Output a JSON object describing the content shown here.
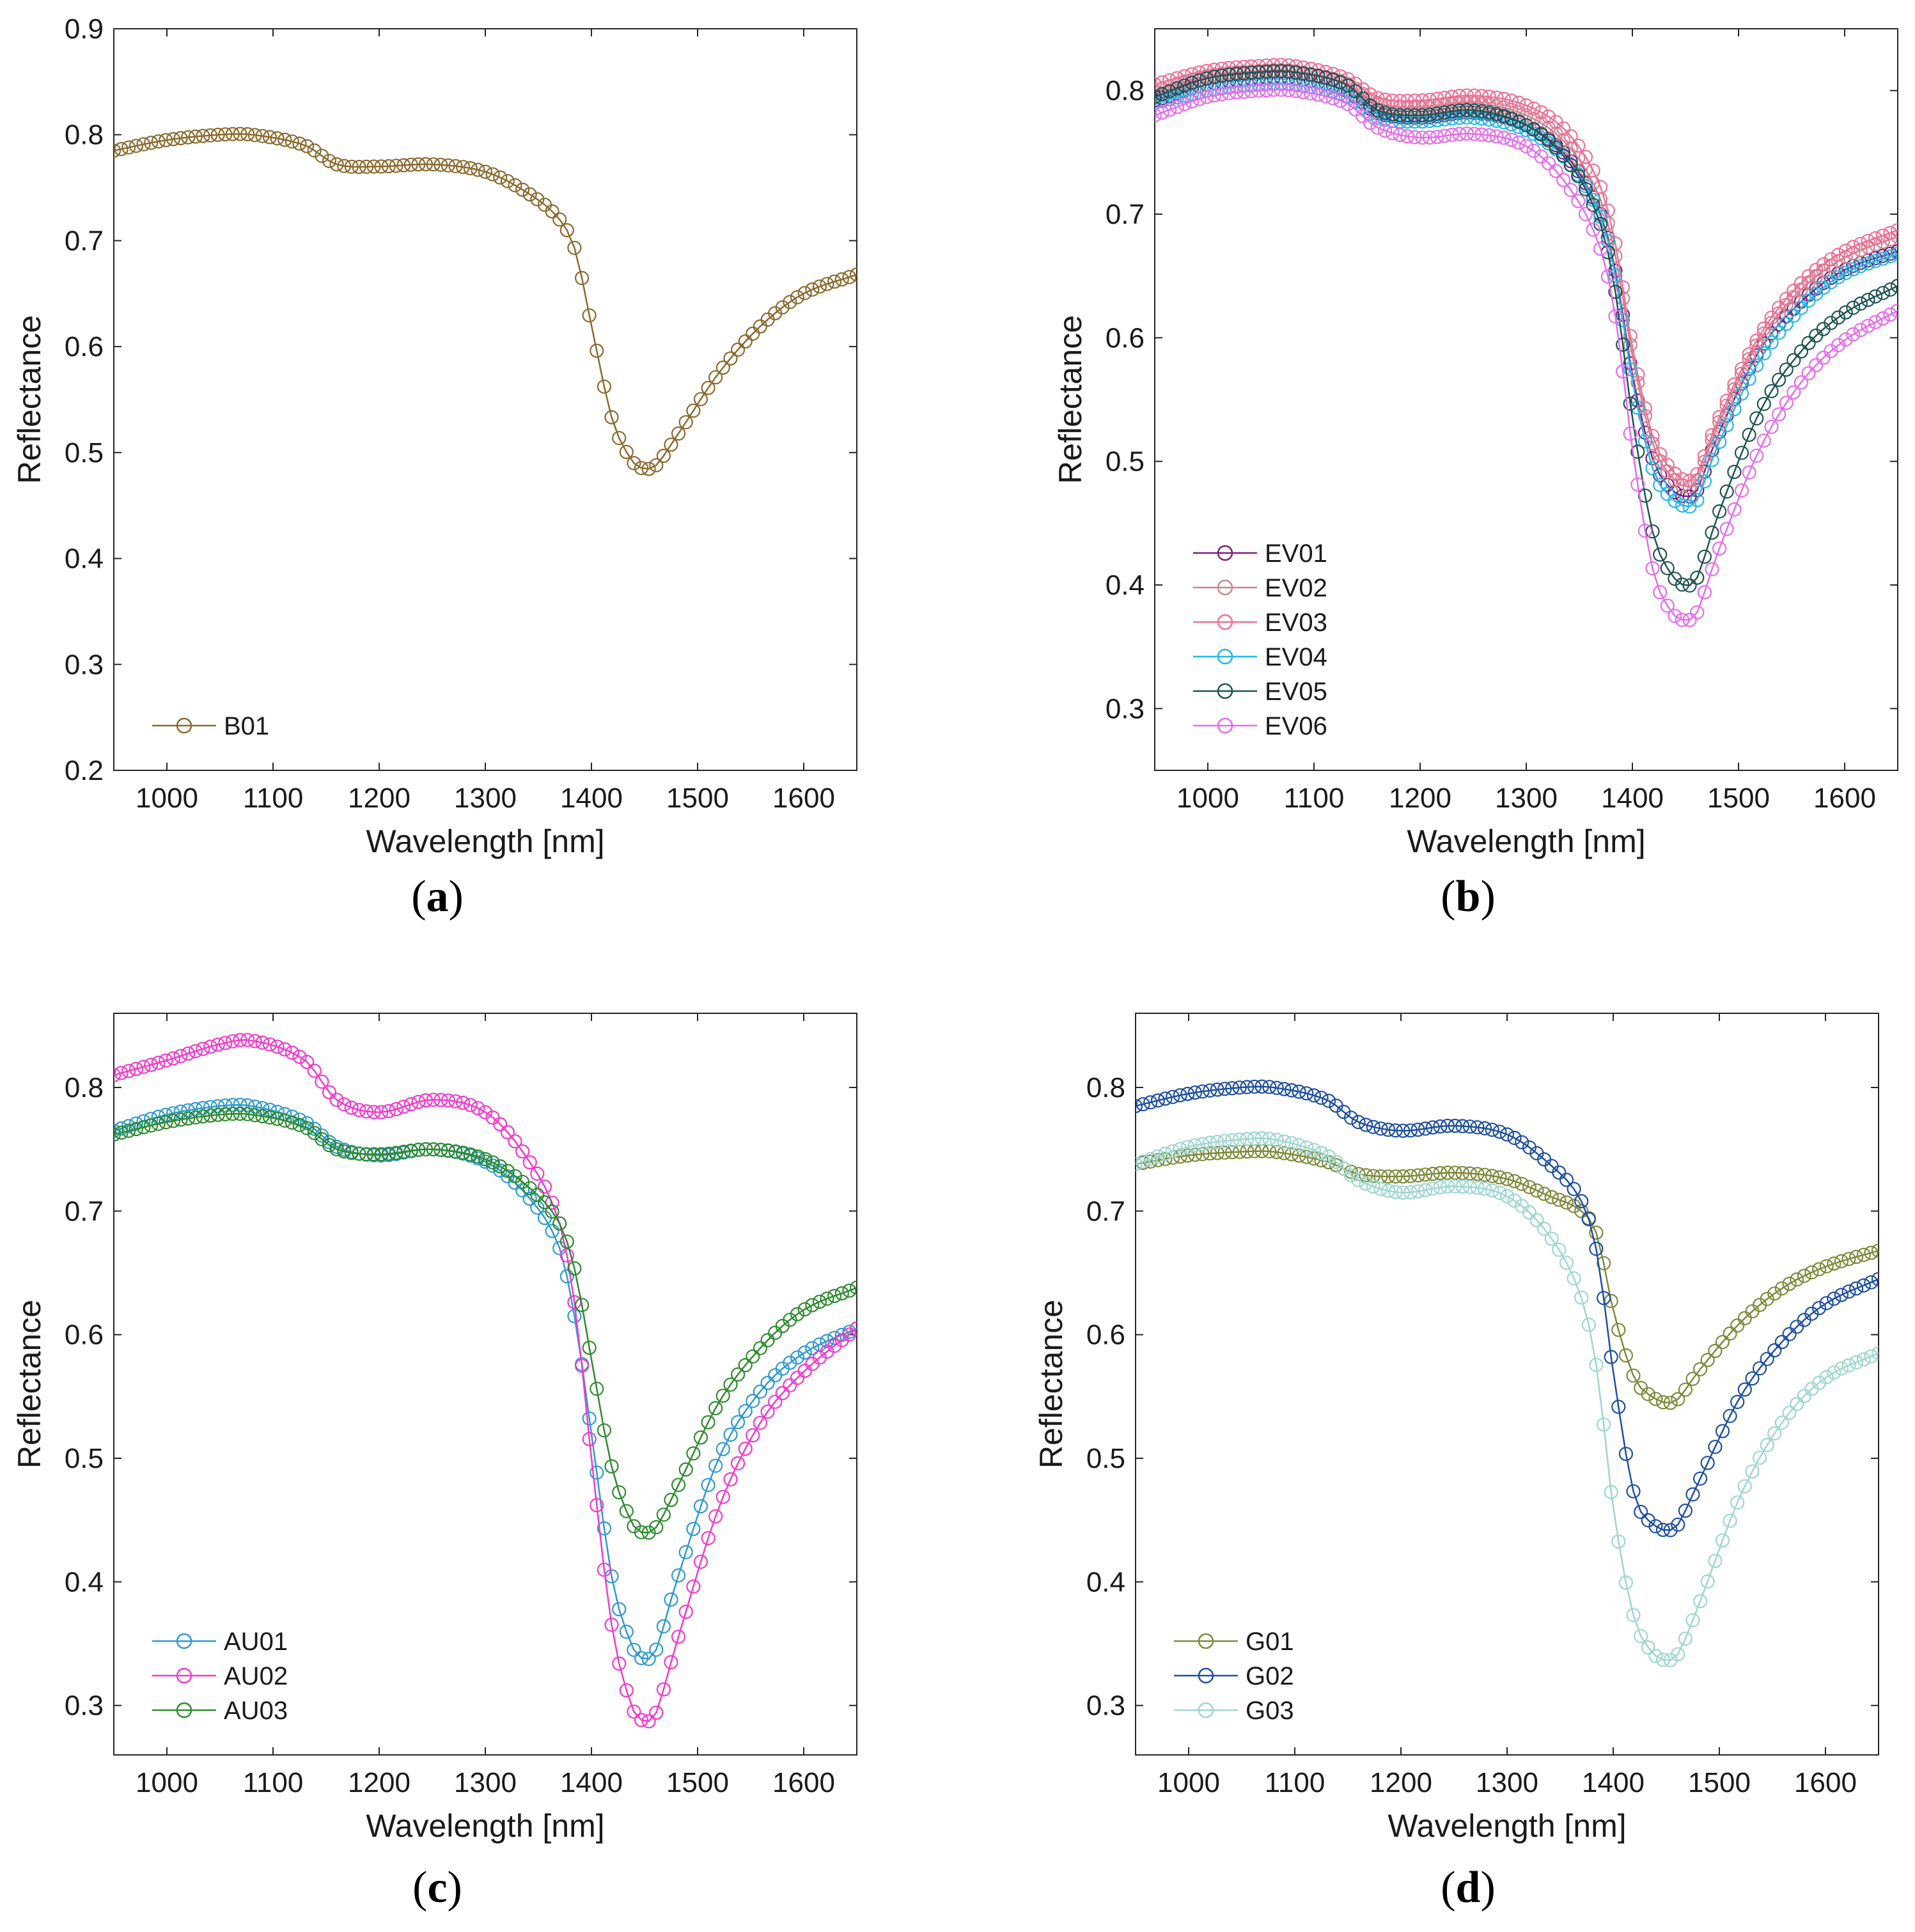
{
  "chart_data": [
    {
      "panel_label": "a",
      "type": "line",
      "xlabel": "Wavelength [nm]",
      "ylabel": "Reflectance",
      "xlim": [
        950,
        1650
      ],
      "ylim": [
        0.2,
        0.9
      ],
      "xticks": [
        1000,
        1100,
        1200,
        1300,
        1400,
        1500,
        1600
      ],
      "yticks": [
        0.2,
        0.3,
        0.4,
        0.5,
        0.6,
        0.7,
        0.8,
        0.9
      ],
      "grid": false,
      "legend_position": "bottom-left",
      "marker": "circle",
      "series": [
        {
          "name": "B01",
          "color": "#8B6A2E",
          "x": [
            950,
            1000,
            1050,
            1080,
            1130,
            1160,
            1200,
            1250,
            1300,
            1340,
            1370,
            1385,
            1400,
            1420,
            1440,
            1450,
            1460,
            1480,
            1520,
            1560,
            1600,
            1650
          ],
          "y": [
            0.785,
            0.795,
            0.8,
            0.8,
            0.79,
            0.772,
            0.77,
            0.772,
            0.765,
            0.745,
            0.72,
            0.69,
            0.62,
            0.53,
            0.49,
            0.485,
            0.487,
            0.515,
            0.575,
            0.62,
            0.65,
            0.668
          ]
        }
      ]
    },
    {
      "panel_label": "b",
      "type": "line",
      "xlabel": "Wavelength [nm]",
      "ylabel": "Reflectance",
      "xlim": [
        950,
        1650
      ],
      "ylim": [
        0.25,
        0.85
      ],
      "xticks": [
        1000,
        1100,
        1200,
        1300,
        1400,
        1500,
        1600
      ],
      "yticks": [
        0.3,
        0.4,
        0.5,
        0.6,
        0.7,
        0.8
      ],
      "grid": false,
      "legend_position": "bottom-left",
      "marker": "circle",
      "series": [
        {
          "name": "EV01",
          "color": "#7B1F7B",
          "x": [
            950,
            1000,
            1050,
            1080,
            1130,
            1160,
            1200,
            1250,
            1300,
            1340,
            1370,
            1385,
            1400,
            1420,
            1440,
            1450,
            1460,
            1480,
            1520,
            1560,
            1600,
            1650
          ],
          "y": [
            0.792,
            0.805,
            0.81,
            0.81,
            0.8,
            0.782,
            0.778,
            0.782,
            0.772,
            0.745,
            0.7,
            0.65,
            0.57,
            0.5,
            0.475,
            0.472,
            0.475,
            0.52,
            0.59,
            0.63,
            0.655,
            0.67
          ]
        },
        {
          "name": "EV02",
          "color": "#C9868E",
          "x": [
            950,
            1000,
            1050,
            1080,
            1130,
            1160,
            1200,
            1250,
            1300,
            1340,
            1370,
            1385,
            1400,
            1420,
            1440,
            1450,
            1460,
            1480,
            1520,
            1560,
            1600,
            1650
          ],
          "y": [
            0.8,
            0.812,
            0.816,
            0.816,
            0.806,
            0.79,
            0.786,
            0.79,
            0.78,
            0.755,
            0.712,
            0.662,
            0.585,
            0.512,
            0.485,
            0.48,
            0.483,
            0.528,
            0.598,
            0.64,
            0.665,
            0.682
          ]
        },
        {
          "name": "EV03",
          "color": "#F06F96",
          "x": [
            950,
            1000,
            1050,
            1080,
            1130,
            1160,
            1200,
            1250,
            1300,
            1340,
            1370,
            1385,
            1400,
            1420,
            1440,
            1450,
            1460,
            1480,
            1520,
            1560,
            1600,
            1650
          ],
          "y": [
            0.805,
            0.816,
            0.82,
            0.82,
            0.81,
            0.794,
            0.792,
            0.796,
            0.788,
            0.765,
            0.722,
            0.672,
            0.592,
            0.518,
            0.49,
            0.485,
            0.488,
            0.532,
            0.602,
            0.645,
            0.67,
            0.687
          ]
        },
        {
          "name": "EV04",
          "color": "#22B8E6",
          "x": [
            950,
            1000,
            1050,
            1080,
            1130,
            1160,
            1200,
            1250,
            1300,
            1340,
            1370,
            1385,
            1400,
            1420,
            1440,
            1450,
            1460,
            1480,
            1520,
            1560,
            1600,
            1650
          ],
          "y": [
            0.79,
            0.8,
            0.805,
            0.805,
            0.796,
            0.778,
            0.775,
            0.778,
            0.768,
            0.742,
            0.698,
            0.646,
            0.565,
            0.492,
            0.468,
            0.464,
            0.467,
            0.512,
            0.582,
            0.625,
            0.652,
            0.668
          ]
        },
        {
          "name": "EV05",
          "color": "#1F5452",
          "x": [
            950,
            1000,
            1050,
            1080,
            1130,
            1160,
            1200,
            1250,
            1300,
            1340,
            1370,
            1385,
            1400,
            1420,
            1440,
            1450,
            1460,
            1480,
            1520,
            1560,
            1600,
            1650
          ],
          "y": [
            0.795,
            0.81,
            0.815,
            0.815,
            0.805,
            0.784,
            0.78,
            0.784,
            0.772,
            0.742,
            0.692,
            0.632,
            0.535,
            0.44,
            0.405,
            0.4,
            0.404,
            0.455,
            0.54,
            0.59,
            0.62,
            0.642
          ]
        },
        {
          "name": "EV06",
          "color": "#E66BEA",
          "x": [
            950,
            1000,
            1050,
            1080,
            1130,
            1160,
            1200,
            1250,
            1300,
            1340,
            1370,
            1385,
            1400,
            1420,
            1440,
            1450,
            1460,
            1480,
            1520,
            1560,
            1600,
            1650
          ],
          "y": [
            0.78,
            0.795,
            0.8,
            0.8,
            0.79,
            0.77,
            0.762,
            0.765,
            0.755,
            0.722,
            0.672,
            0.612,
            0.51,
            0.41,
            0.375,
            0.372,
            0.376,
            0.425,
            0.51,
            0.565,
            0.598,
            0.622
          ]
        }
      ]
    },
    {
      "panel_label": "c",
      "type": "line",
      "xlabel": "Wavelength [nm]",
      "ylabel": "Reflectance",
      "xlim": [
        950,
        1650
      ],
      "ylim": [
        0.26,
        0.86
      ],
      "xticks": [
        1000,
        1100,
        1200,
        1300,
        1400,
        1500,
        1600
      ],
      "yticks": [
        0.3,
        0.4,
        0.5,
        0.6,
        0.7,
        0.8
      ],
      "grid": false,
      "legend_position": "bottom-left",
      "marker": "circle",
      "series": [
        {
          "name": "AU01",
          "color": "#2E9AD0",
          "x": [
            950,
            1000,
            1050,
            1080,
            1130,
            1160,
            1200,
            1250,
            1300,
            1340,
            1370,
            1385,
            1400,
            1420,
            1440,
            1450,
            1460,
            1480,
            1520,
            1560,
            1600,
            1650
          ],
          "y": [
            0.765,
            0.778,
            0.785,
            0.785,
            0.772,
            0.752,
            0.745,
            0.75,
            0.74,
            0.712,
            0.67,
            0.61,
            0.52,
            0.4,
            0.345,
            0.338,
            0.343,
            0.4,
            0.5,
            0.555,
            0.585,
            0.605
          ]
        },
        {
          "name": "AU02",
          "color": "#F03ACD",
          "x": [
            950,
            1000,
            1050,
            1080,
            1130,
            1160,
            1200,
            1250,
            1300,
            1340,
            1370,
            1385,
            1400,
            1420,
            1440,
            1450,
            1460,
            1480,
            1520,
            1560,
            1600,
            1650
          ],
          "y": [
            0.81,
            0.822,
            0.835,
            0.838,
            0.822,
            0.79,
            0.78,
            0.79,
            0.78,
            0.742,
            0.69,
            0.62,
            0.5,
            0.36,
            0.295,
            0.288,
            0.292,
            0.35,
            0.46,
            0.53,
            0.57,
            0.605
          ]
        },
        {
          "name": "AU03",
          "color": "#2E8B2E",
          "x": [
            950,
            1000,
            1050,
            1080,
            1130,
            1160,
            1200,
            1250,
            1300,
            1340,
            1370,
            1385,
            1400,
            1420,
            1440,
            1450,
            1460,
            1480,
            1520,
            1560,
            1600,
            1650
          ],
          "y": [
            0.762,
            0.772,
            0.778,
            0.778,
            0.768,
            0.75,
            0.746,
            0.75,
            0.742,
            0.72,
            0.69,
            0.65,
            0.58,
            0.49,
            0.445,
            0.44,
            0.443,
            0.475,
            0.545,
            0.59,
            0.62,
            0.638
          ]
        }
      ]
    },
    {
      "panel_label": "d",
      "type": "line",
      "xlabel": "Wavelength [nm]",
      "ylabel": "Reflectance",
      "xlim": [
        950,
        1650
      ],
      "ylim": [
        0.26,
        0.86
      ],
      "xticks": [
        1000,
        1100,
        1200,
        1300,
        1400,
        1500,
        1600
      ],
      "yticks": [
        0.3,
        0.4,
        0.5,
        0.6,
        0.7,
        0.8
      ],
      "grid": false,
      "legend_position": "bottom-left",
      "marker": "circle",
      "series": [
        {
          "name": "G01",
          "color": "#7E8A3A",
          "x": [
            950,
            1000,
            1050,
            1080,
            1130,
            1160,
            1200,
            1250,
            1300,
            1340,
            1370,
            1385,
            1400,
            1420,
            1440,
            1450,
            1460,
            1480,
            1520,
            1560,
            1600,
            1650
          ],
          "y": [
            0.738,
            0.745,
            0.748,
            0.748,
            0.74,
            0.73,
            0.728,
            0.731,
            0.726,
            0.712,
            0.7,
            0.68,
            0.62,
            0.565,
            0.548,
            0.545,
            0.547,
            0.57,
            0.61,
            0.638,
            0.655,
            0.668
          ]
        },
        {
          "name": "G02",
          "color": "#1F4FA0",
          "x": [
            950,
            1000,
            1050,
            1080,
            1130,
            1160,
            1200,
            1250,
            1300,
            1340,
            1370,
            1385,
            1400,
            1420,
            1440,
            1450,
            1460,
            1480,
            1520,
            1560,
            1600,
            1650
          ],
          "y": [
            0.785,
            0.795,
            0.8,
            0.8,
            0.79,
            0.772,
            0.765,
            0.769,
            0.762,
            0.738,
            0.708,
            0.665,
            0.57,
            0.47,
            0.445,
            0.442,
            0.445,
            0.48,
            0.55,
            0.595,
            0.625,
            0.645
          ]
        },
        {
          "name": "G03",
          "color": "#9ED6D0",
          "x": [
            950,
            1000,
            1050,
            1080,
            1130,
            1160,
            1200,
            1250,
            1300,
            1340,
            1370,
            1385,
            1400,
            1420,
            1440,
            1450,
            1460,
            1480,
            1520,
            1560,
            1600,
            1650
          ],
          "y": [
            0.738,
            0.752,
            0.758,
            0.758,
            0.745,
            0.725,
            0.715,
            0.72,
            0.712,
            0.68,
            0.63,
            0.57,
            0.46,
            0.37,
            0.34,
            0.337,
            0.34,
            0.38,
            0.47,
            0.53,
            0.565,
            0.585
          ]
        }
      ]
    }
  ]
}
